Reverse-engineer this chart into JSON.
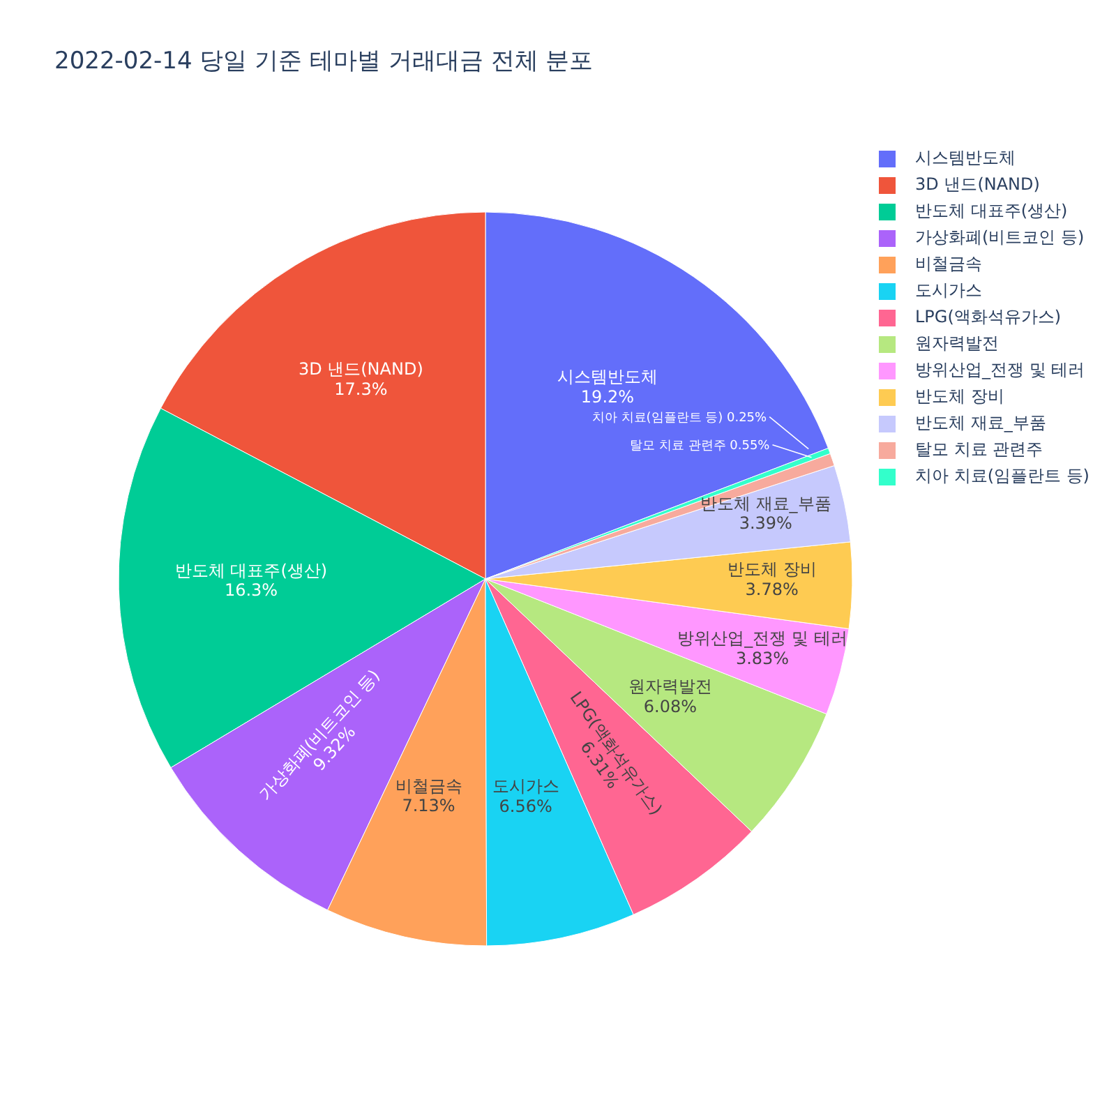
{
  "chart_data": {
    "type": "pie",
    "title": "2022-02-14 당일 기준 테마별 거래대금 전체 분포",
    "categories": [
      "시스템반도체",
      "3D 낸드(NAND)",
      "반도체 대표주(생산)",
      "가상화폐(비트코인 등)",
      "비철금속",
      "도시가스",
      "LPG(액화석유가스)",
      "원자력발전",
      "방위산업_전쟁 및 테러",
      "반도체 장비",
      "반도체 재료_부품",
      "탈모 치료 관련주",
      "치아 치료(임플란트 등)"
    ],
    "values": [
      19.2,
      17.3,
      16.3,
      9.32,
      7.13,
      6.56,
      6.31,
      6.08,
      3.83,
      3.78,
      3.39,
      0.55,
      0.25
    ],
    "colors": [
      "#636efa",
      "#ef553b",
      "#00cc96",
      "#ab63fa",
      "#ffa15a",
      "#19d3f3",
      "#ff6692",
      "#b6e880",
      "#ff97ff",
      "#fecb52",
      "#c6c9fd",
      "#f7aa9d",
      "#33ffcb"
    ],
    "value_labels": [
      "19.2%",
      "17.3%",
      "16.3%",
      "9.32%",
      "7.13%",
      "6.56%",
      "6.31%",
      "6.08%",
      "3.83%",
      "3.78%",
      "3.39%",
      "0.55%",
      "0.25%"
    ],
    "legend": "top right"
  }
}
